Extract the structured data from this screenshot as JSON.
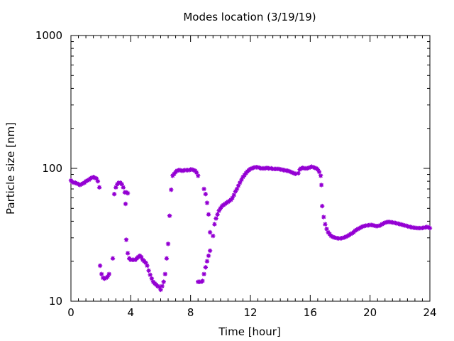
{
  "chart_data": {
    "type": "scatter",
    "title": "Modes location (3/19/19)",
    "xlabel": "Time [hour]",
    "ylabel": "Particle size [nm]",
    "xlim": [
      0,
      24
    ],
    "ylim": [
      10,
      1000
    ],
    "yscale": "log",
    "xticks": [
      "0",
      "4",
      "8",
      "12",
      "16",
      "20",
      "24"
    ],
    "yticks": [
      "10",
      "100",
      "1000"
    ],
    "grid": false,
    "legend": "none",
    "marker_color": "#9400d3",
    "series": [
      {
        "points": [
          [
            0.0,
            81
          ],
          [
            0.1,
            79
          ],
          [
            0.2,
            78
          ],
          [
            0.3,
            78
          ],
          [
            0.4,
            77
          ],
          [
            0.5,
            76
          ],
          [
            0.6,
            75
          ],
          [
            0.7,
            76
          ],
          [
            0.8,
            77
          ],
          [
            0.9,
            78
          ],
          [
            1.0,
            80
          ],
          [
            1.1,
            81
          ],
          [
            1.2,
            82
          ],
          [
            1.3,
            84
          ],
          [
            1.4,
            85
          ],
          [
            1.5,
            86
          ],
          [
            1.6,
            85
          ],
          [
            1.7,
            84
          ],
          [
            1.8,
            80
          ],
          [
            1.9,
            72
          ],
          [
            1.95,
            18.5
          ],
          [
            2.05,
            16
          ],
          [
            2.15,
            15
          ],
          [
            2.25,
            14.8
          ],
          [
            2.35,
            15
          ],
          [
            2.45,
            15.3
          ],
          [
            2.55,
            16
          ],
          [
            2.8,
            21
          ],
          [
            2.9,
            64
          ],
          [
            3.0,
            72
          ],
          [
            3.1,
            76
          ],
          [
            3.2,
            78
          ],
          [
            3.3,
            78
          ],
          [
            3.4,
            76
          ],
          [
            3.5,
            72
          ],
          [
            3.6,
            66
          ],
          [
            3.7,
            66
          ],
          [
            3.8,
            65
          ],
          [
            3.65,
            54
          ],
          [
            3.7,
            29
          ],
          [
            3.8,
            23
          ],
          [
            3.9,
            21
          ],
          [
            4.0,
            20.5
          ],
          [
            4.1,
            20.5
          ],
          [
            4.2,
            20.5
          ],
          [
            4.3,
            20.5
          ],
          [
            4.4,
            21
          ],
          [
            4.5,
            21.5
          ],
          [
            4.6,
            22
          ],
          [
            4.7,
            21.5
          ],
          [
            4.8,
            20.5
          ],
          [
            4.9,
            20
          ],
          [
            5.0,
            19.5
          ],
          [
            5.1,
            18.5
          ],
          [
            5.2,
            17
          ],
          [
            5.3,
            15.8
          ],
          [
            5.4,
            14.8
          ],
          [
            5.5,
            14
          ],
          [
            5.6,
            13.6
          ],
          [
            5.7,
            13.3
          ],
          [
            5.8,
            13
          ],
          [
            5.9,
            12.8
          ],
          [
            6.0,
            12.2
          ],
          [
            6.1,
            13
          ],
          [
            6.2,
            14
          ],
          [
            6.3,
            16
          ],
          [
            6.4,
            21
          ],
          [
            6.5,
            27
          ],
          [
            6.6,
            44
          ],
          [
            6.7,
            69
          ],
          [
            6.8,
            88
          ],
          [
            6.9,
            91
          ],
          [
            7.0,
            94
          ],
          [
            7.1,
            96
          ],
          [
            7.2,
            97
          ],
          [
            7.3,
            97
          ],
          [
            7.4,
            96
          ],
          [
            7.5,
            96
          ],
          [
            7.6,
            97
          ],
          [
            7.7,
            97
          ],
          [
            7.8,
            97
          ],
          [
            7.9,
            97
          ],
          [
            8.0,
            98
          ],
          [
            8.1,
            98
          ],
          [
            8.2,
            97
          ],
          [
            8.3,
            96
          ],
          [
            8.4,
            93
          ],
          [
            8.5,
            88
          ],
          [
            8.5,
            14
          ],
          [
            8.6,
            14
          ],
          [
            8.7,
            14
          ],
          [
            8.8,
            14.2
          ],
          [
            8.9,
            16
          ],
          [
            9.0,
            18
          ],
          [
            9.1,
            20
          ],
          [
            9.2,
            22
          ],
          [
            9.3,
            24
          ],
          [
            8.9,
            70
          ],
          [
            9.0,
            64
          ],
          [
            9.1,
            55
          ],
          [
            9.2,
            45
          ],
          [
            9.3,
            33
          ],
          [
            9.5,
            31
          ],
          [
            9.6,
            38
          ],
          [
            9.7,
            42
          ],
          [
            9.8,
            45
          ],
          [
            9.9,
            48
          ],
          [
            10.0,
            50
          ],
          [
            10.1,
            52
          ],
          [
            10.2,
            53
          ],
          [
            10.3,
            54
          ],
          [
            10.4,
            55
          ],
          [
            10.5,
            56
          ],
          [
            10.6,
            57
          ],
          [
            10.7,
            58
          ],
          [
            10.8,
            60
          ],
          [
            10.9,
            63
          ],
          [
            11.0,
            67
          ],
          [
            11.1,
            70
          ],
          [
            11.2,
            74
          ],
          [
            11.3,
            78
          ],
          [
            11.4,
            82
          ],
          [
            11.5,
            86
          ],
          [
            11.6,
            89
          ],
          [
            11.7,
            92
          ],
          [
            11.8,
            95
          ],
          [
            11.9,
            97
          ],
          [
            12.0,
            99
          ],
          [
            12.1,
            100
          ],
          [
            12.2,
            101
          ],
          [
            12.3,
            102
          ],
          [
            12.4,
            102
          ],
          [
            12.5,
            102
          ],
          [
            12.6,
            101
          ],
          [
            12.7,
            100
          ],
          [
            12.8,
            100
          ],
          [
            12.9,
            100
          ],
          [
            13.0,
            100
          ],
          [
            13.1,
            101
          ],
          [
            13.2,
            100
          ],
          [
            13.3,
            100
          ],
          [
            13.4,
            100
          ],
          [
            13.5,
            99
          ],
          [
            13.6,
            99
          ],
          [
            13.7,
            99
          ],
          [
            13.8,
            99
          ],
          [
            13.9,
            99
          ],
          [
            14.0,
            98
          ],
          [
            14.1,
            98
          ],
          [
            14.2,
            97
          ],
          [
            14.3,
            97
          ],
          [
            14.4,
            96
          ],
          [
            14.5,
            96
          ],
          [
            14.6,
            95
          ],
          [
            14.7,
            94
          ],
          [
            14.8,
            93
          ],
          [
            14.9,
            92
          ],
          [
            15.0,
            91
          ],
          [
            15.2,
            92
          ],
          [
            15.3,
            98
          ],
          [
            15.4,
            100
          ],
          [
            15.5,
            101
          ],
          [
            15.6,
            100
          ],
          [
            15.7,
            100
          ],
          [
            15.8,
            100
          ],
          [
            15.9,
            101
          ],
          [
            16.0,
            102
          ],
          [
            16.1,
            103
          ],
          [
            16.2,
            102
          ],
          [
            16.3,
            101
          ],
          [
            16.4,
            100
          ],
          [
            16.5,
            98
          ],
          [
            16.6,
            94
          ],
          [
            16.7,
            88
          ],
          [
            16.75,
            75
          ],
          [
            16.8,
            52
          ],
          [
            16.9,
            43
          ],
          [
            17.0,
            38
          ],
          [
            17.1,
            35
          ],
          [
            17.2,
            33
          ],
          [
            17.3,
            32
          ],
          [
            17.4,
            31
          ],
          [
            17.5,
            30.5
          ],
          [
            17.6,
            30.2
          ],
          [
            17.7,
            30
          ],
          [
            17.8,
            29.8
          ],
          [
            17.9,
            29.7
          ],
          [
            18.0,
            29.7
          ],
          [
            18.1,
            29.8
          ],
          [
            18.2,
            30
          ],
          [
            18.3,
            30.3
          ],
          [
            18.4,
            30.6
          ],
          [
            18.5,
            31
          ],
          [
            18.6,
            31.5
          ],
          [
            18.7,
            32
          ],
          [
            18.8,
            32.5
          ],
          [
            18.9,
            33
          ],
          [
            19.0,
            34
          ],
          [
            19.1,
            34.5
          ],
          [
            19.2,
            35
          ],
          [
            19.3,
            35.5
          ],
          [
            19.4,
            36
          ],
          [
            19.5,
            36.5
          ],
          [
            19.6,
            36.8
          ],
          [
            19.7,
            37
          ],
          [
            19.8,
            37.2
          ],
          [
            19.9,
            37.3
          ],
          [
            20.0,
            37.5
          ],
          [
            20.1,
            37.5
          ],
          [
            20.2,
            37.3
          ],
          [
            20.3,
            37
          ],
          [
            20.4,
            36.8
          ],
          [
            20.5,
            36.8
          ],
          [
            20.6,
            37
          ],
          [
            20.7,
            37.3
          ],
          [
            20.8,
            38
          ],
          [
            20.9,
            38.5
          ],
          [
            21.0,
            39
          ],
          [
            21.1,
            39.3
          ],
          [
            21.2,
            39.5
          ],
          [
            21.3,
            39.5
          ],
          [
            21.4,
            39.3
          ],
          [
            21.5,
            39.2
          ],
          [
            21.6,
            39
          ],
          [
            21.7,
            38.8
          ],
          [
            21.8,
            38.5
          ],
          [
            21.9,
            38.3
          ],
          [
            22.0,
            38
          ],
          [
            22.1,
            37.8
          ],
          [
            22.2,
            37.5
          ],
          [
            22.3,
            37.2
          ],
          [
            22.4,
            37
          ],
          [
            22.5,
            36.7
          ],
          [
            22.6,
            36.4
          ],
          [
            22.7,
            36.2
          ],
          [
            22.8,
            36
          ],
          [
            22.9,
            35.8
          ],
          [
            23.0,
            35.7
          ],
          [
            23.1,
            35.6
          ],
          [
            23.2,
            35.5
          ],
          [
            23.3,
            35.5
          ],
          [
            23.4,
            35.5
          ],
          [
            23.5,
            35.6
          ],
          [
            23.6,
            35.8
          ],
          [
            23.7,
            36
          ],
          [
            23.8,
            36.2
          ],
          [
            23.9,
            36
          ],
          [
            24.0,
            35.5
          ]
        ]
      }
    ]
  }
}
